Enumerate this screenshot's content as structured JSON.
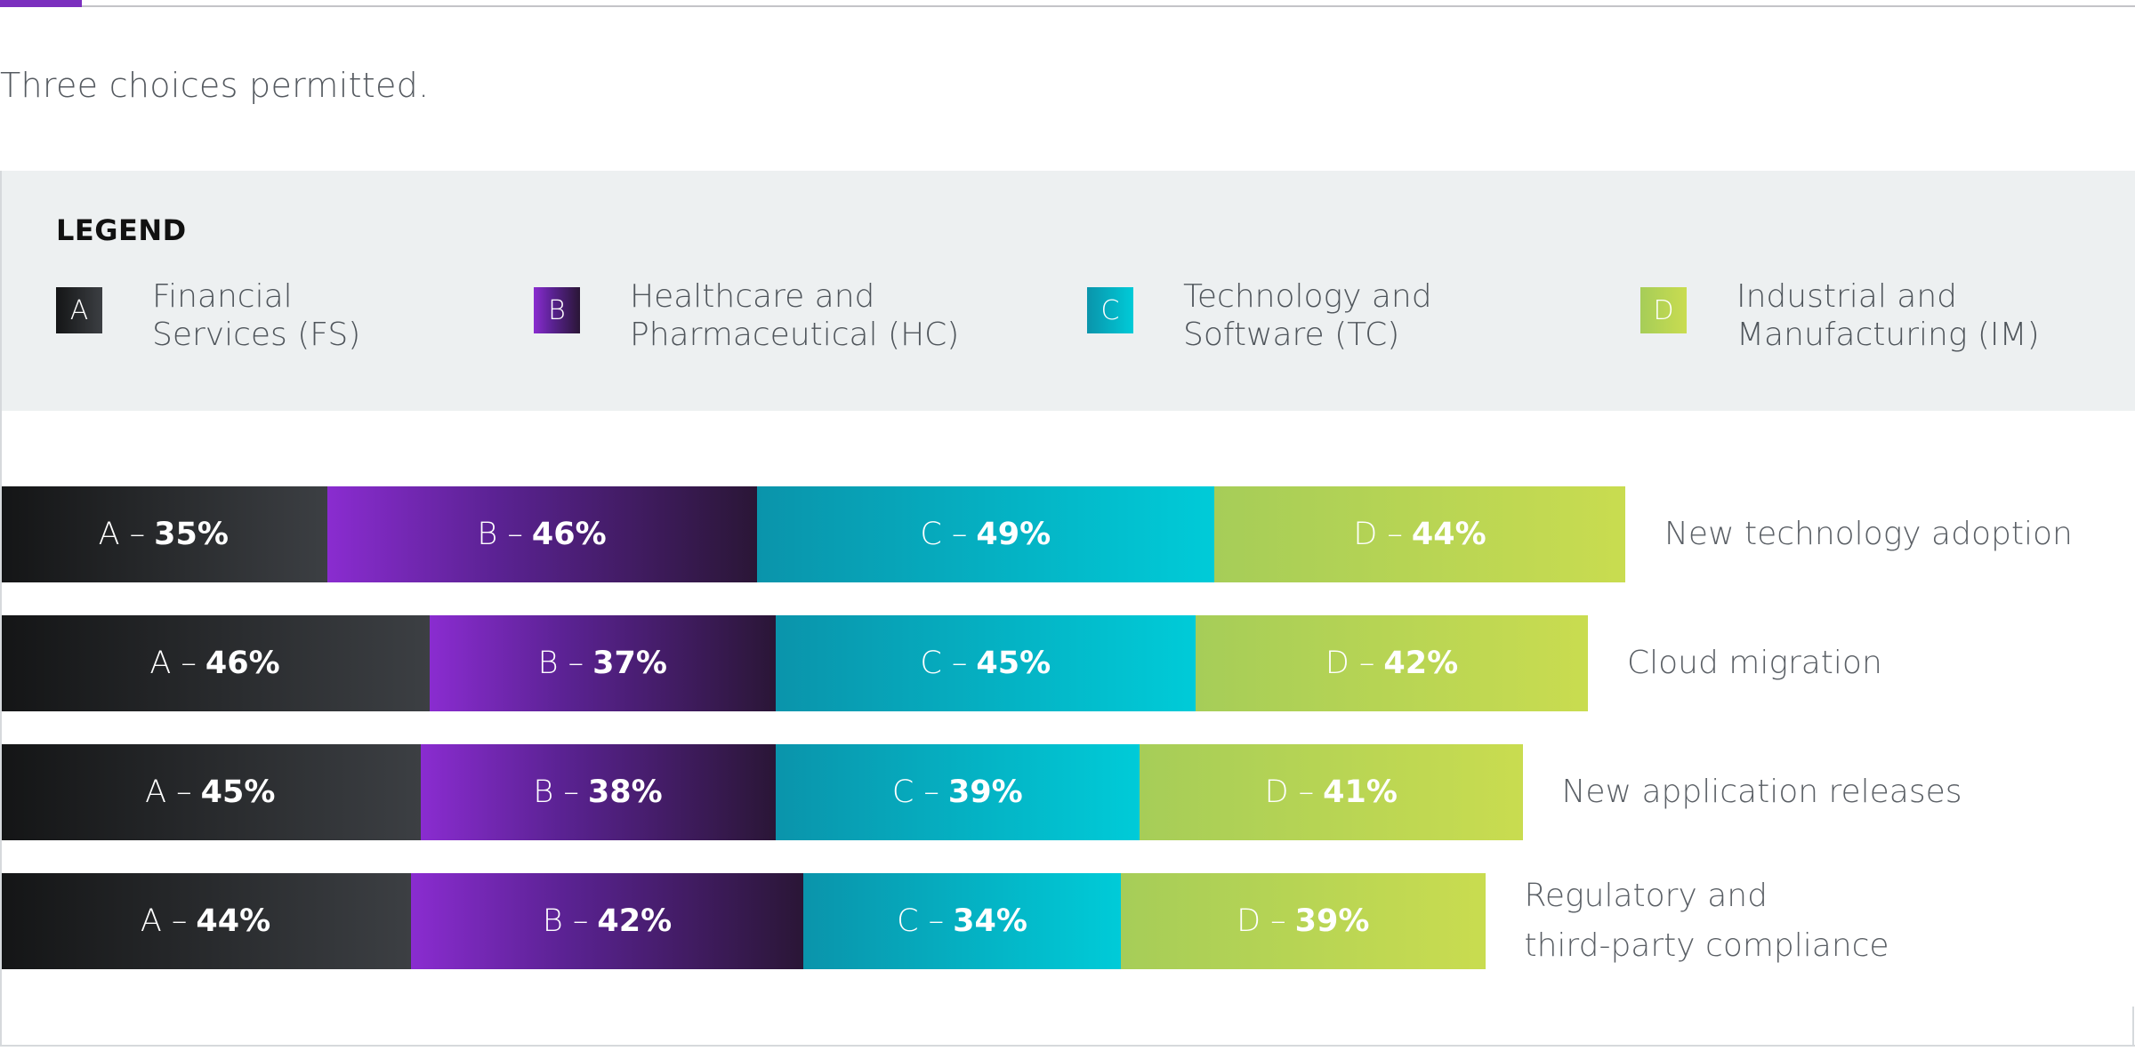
{
  "subtitle": "Three choices permitted.",
  "legend": {
    "title": "LEGEND",
    "items": [
      {
        "key": "A",
        "line1": "Financial",
        "line2": "Services (FS)",
        "color_start": "#141516",
        "color_end": "#3c3f43"
      },
      {
        "key": "B",
        "line1": "Healthcare and",
        "line2": "Pharmaceutical (HC)",
        "color_start": "#8a2cd0",
        "color_end": "#2a1636"
      },
      {
        "key": "C",
        "line1": "Technology and",
        "line2": "Software (TC)",
        "color_start": "#0a94ab",
        "color_end": "#00cbd8"
      },
      {
        "key": "D",
        "line1": "Industrial and",
        "line2": "Manufacturing (IM)",
        "color_start": "#a6cd58",
        "color_end": "#c9dc50"
      }
    ]
  },
  "chart_data": {
    "type": "bar",
    "orientation": "horizontal",
    "stacked": true,
    "title": "",
    "subtitle": "Three choices permitted.",
    "legend_position": "top",
    "categories": [
      "New technology adoption",
      "Cloud migration",
      "New application releases",
      "Regulatory and third-party compliance"
    ],
    "category_lines": [
      [
        "New technology adoption"
      ],
      [
        "Cloud migration"
      ],
      [
        "New application releases"
      ],
      [
        "Regulatory and",
        "third-party compliance"
      ]
    ],
    "unit": "%",
    "series": [
      {
        "name": "A",
        "label": "Financial Services (FS)",
        "values": [
          35,
          46,
          45,
          44
        ]
      },
      {
        "name": "B",
        "label": "Healthcare and Pharmaceutical (HC)",
        "values": [
          46,
          37,
          38,
          42
        ]
      },
      {
        "name": "C",
        "label": "Technology and Software (TC)",
        "values": [
          49,
          45,
          39,
          34
        ]
      },
      {
        "name": "D",
        "label": "Industrial and Manufacturing (IM)",
        "values": [
          44,
          42,
          41,
          39
        ]
      }
    ]
  }
}
